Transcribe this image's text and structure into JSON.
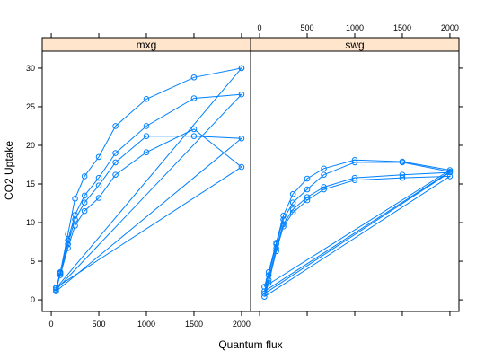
{
  "chart_data": {
    "type": "line",
    "xlabel": "Quantum flux",
    "ylabel": "CO2 Uptake",
    "xlim": [
      -95,
      2095
    ],
    "ylim": [
      -1.5,
      32.2
    ],
    "x_ticks": [
      0,
      500,
      1000,
      1500,
      2000
    ],
    "y_ticks": [
      0,
      5,
      10,
      15,
      20,
      25,
      30
    ],
    "series_color": "#0080ff",
    "strip_color": "#ffe5cc",
    "panels": [
      {
        "name": "mxg",
        "series": [
          {
            "x": [
              50,
              95,
              175,
              250,
              350,
              500,
              675,
              1000,
              1500,
              2000,
              2000
            ],
            "values": [
              1.5,
              3.5,
              8.5,
              13.1,
              16,
              18.5,
              22.5,
              26,
              28.8,
              30,
              30
            ]
          },
          {
            "x": [
              50,
              95,
              175,
              250,
              350,
              500,
              675,
              1000,
              1500,
              2000
            ],
            "values": [
              1.3,
              3.6,
              7.7,
              11,
              13.5,
              15.8,
              19,
              22.5,
              26.1,
              26.6
            ]
          },
          {
            "x": [
              50,
              95,
              175,
              250,
              350,
              500,
              675,
              1000,
              1500,
              2000
            ],
            "values": [
              1.1,
              3.4,
              7.2,
              10.4,
              12.6,
              14.8,
              17.8,
              21.2,
              21.2,
              20.9
            ]
          },
          {
            "x": [
              50,
              95,
              175,
              250,
              350,
              500,
              675,
              1000,
              1500,
              2000
            ],
            "values": [
              1.6,
              3.2,
              6.7,
              9.6,
              11.5,
              13.2,
              16.2,
              19.1,
              22.1,
              17.2
            ]
          }
        ]
      },
      {
        "name": "swg",
        "series": [
          {
            "x": [
              50,
              95,
              175,
              250,
              350,
              500,
              675,
              1000,
              1500,
              2000
            ],
            "values": [
              1.7,
              3.6,
              7.4,
              10.9,
              13.7,
              15.7,
              17,
              18.1,
              17.9,
              16.8
            ]
          },
          {
            "x": [
              50,
              95,
              175,
              250,
              350,
              500,
              675,
              1000,
              1500,
              2000
            ],
            "values": [
              1.1,
              3.2,
              7.2,
              10.4,
              12.6,
              14.3,
              16.2,
              17.8,
              17.8,
              16.6
            ]
          },
          {
            "x": [
              50,
              95,
              175,
              250,
              350,
              500,
              675,
              1000,
              1500,
              2000
            ],
            "values": [
              0.8,
              2.6,
              6.7,
              9.8,
              11.7,
              13.3,
              14.6,
              15.8,
              16.2,
              16.5
            ]
          },
          {
            "x": [
              50,
              95,
              175,
              250,
              350,
              500,
              675,
              1000,
              1500,
              2000
            ],
            "values": [
              0.4,
              2.2,
              6.3,
              9.5,
              11.3,
              12.9,
              14.3,
              15.5,
              15.8,
              16
            ]
          }
        ]
      }
    ]
  }
}
